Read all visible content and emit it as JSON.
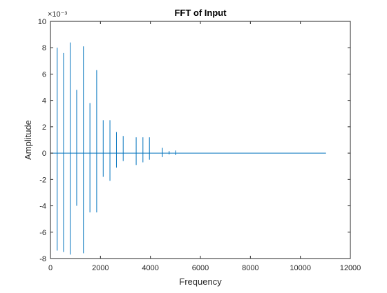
{
  "chart_data": {
    "type": "line",
    "title": "FFT of Input",
    "xlabel": "Frequency",
    "ylabel": "Amplitude",
    "xlim": [
      0,
      12000
    ],
    "ylim": [
      -8,
      10
    ],
    "y_exponent_label": "×10⁻³",
    "x_ticks": [
      0,
      2000,
      4000,
      6000,
      8000,
      10000,
      12000
    ],
    "x_tick_labels": [
      "0",
      "2000",
      "4000",
      "6000",
      "8000",
      "10000",
      "12000"
    ],
    "y_ticks": [
      -8,
      -6,
      -4,
      -2,
      0,
      2,
      4,
      6,
      8,
      10
    ],
    "y_tick_labels": [
      "-8",
      "-6",
      "-4",
      "-2",
      "0",
      "2",
      "4",
      "6",
      "8",
      "10"
    ],
    "grid": false,
    "box": true,
    "line_color": "#0072BD",
    "x_end": 11025,
    "series": [
      {
        "spikes": [
          {
            "x": 270,
            "max": 8.0,
            "min": -7.4
          },
          {
            "x": 525,
            "max": 7.6,
            "min": -7.5
          },
          {
            "x": 790,
            "max": 8.4,
            "min": -7.7
          },
          {
            "x": 1050,
            "max": 4.8,
            "min": -4.0
          },
          {
            "x": 1320,
            "max": 8.1,
            "min": -7.6
          },
          {
            "x": 1580,
            "max": 3.8,
            "min": -4.5
          },
          {
            "x": 1850,
            "max": 6.3,
            "min": -4.5
          },
          {
            "x": 2110,
            "max": 2.5,
            "min": -1.8
          },
          {
            "x": 2380,
            "max": 2.5,
            "min": -2.1
          },
          {
            "x": 2640,
            "max": 1.6,
            "min": -1.1
          },
          {
            "x": 2910,
            "max": 1.3,
            "min": -0.6
          },
          {
            "x": 3430,
            "max": 1.2,
            "min": -0.9
          },
          {
            "x": 3700,
            "max": 1.2,
            "min": -0.7
          },
          {
            "x": 3960,
            "max": 1.2,
            "min": -0.5
          },
          {
            "x": 4480,
            "max": 0.4,
            "min": -0.3
          },
          {
            "x": 4750,
            "max": 0.15,
            "min": -0.1
          },
          {
            "x": 5010,
            "max": 0.2,
            "min": -0.15
          }
        ]
      }
    ]
  }
}
